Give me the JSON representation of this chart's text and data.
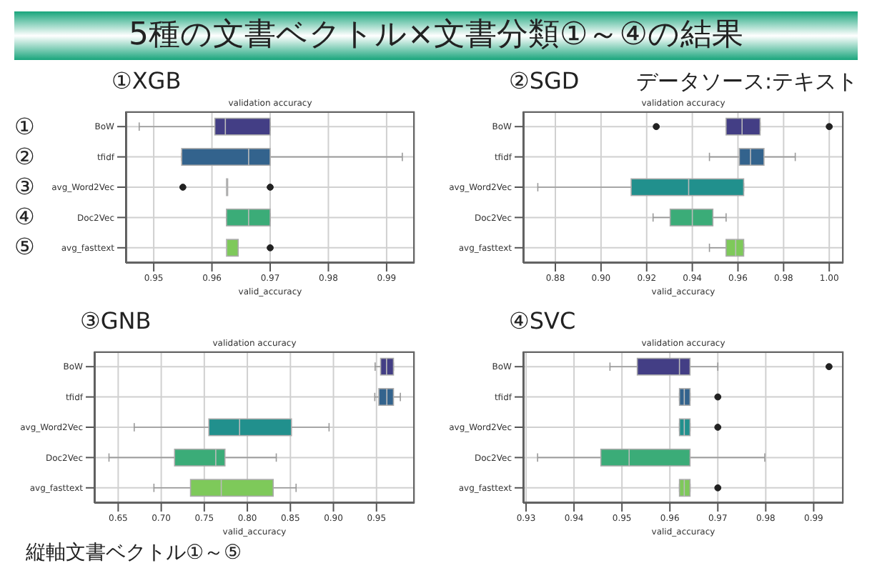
{
  "chart_data": [
    {
      "type": "box",
      "title": "①XGB",
      "subtitle": "validation accuracy",
      "xlabel": "valid_accuracy",
      "orientation": "horizontal",
      "grid": true,
      "categories": [
        "BoW",
        "tfidf",
        "avg_Word2Vec",
        "Doc2Vec",
        "avg_fasttext"
      ],
      "colors": [
        "#433e85",
        "#33638d",
        "#21908d",
        "#3bac78",
        "#7ec95a"
      ],
      "xlim": [
        0.9452,
        0.9948
      ],
      "xticks": [
        0.95,
        0.96,
        0.97,
        0.98,
        0.99
      ],
      "boxes": [
        {
          "low": 0.9475,
          "q1": 0.9605,
          "median": 0.9623,
          "q3": 0.97,
          "high": 0.97
        },
        {
          "low": 0.9548,
          "q1": 0.9548,
          "median": 0.9663,
          "q3": 0.97,
          "high": 0.9927
        },
        {
          "low": 0.9625,
          "q1": 0.9625,
          "median": 0.9625,
          "q3": 0.9625,
          "high": 0.9625,
          "outliers": [
            0.955,
            0.97
          ]
        },
        {
          "low": 0.9625,
          "q1": 0.9625,
          "median": 0.9663,
          "q3": 0.97,
          "high": 0.97
        },
        {
          "low": 0.9625,
          "q1": 0.9625,
          "median": 0.9625,
          "q3": 0.9645,
          "high": 0.9645,
          "outliers": [
            0.97
          ]
        }
      ],
      "annotations": [
        "5種の文書ベクトル×文書分類①～④の結果",
        "①",
        "②",
        "③",
        "④",
        "⑤"
      ]
    },
    {
      "type": "box",
      "title": "②SGD",
      "subtitle": "validation accuracy",
      "xlabel": "valid_accuracy",
      "orientation": "horizontal",
      "grid": true,
      "categories": [
        "BoW",
        "tfidf",
        "avg_Word2Vec",
        "Doc2Vec",
        "avg_fasttext"
      ],
      "colors": [
        "#433e85",
        "#33638d",
        "#21908d",
        "#3bac78",
        "#7ec95a"
      ],
      "xlim": [
        0.8659,
        1.0062
      ],
      "xticks": [
        0.88,
        {
          "value": 0.9,
          "label": "0.90"
        },
        0.92,
        0.94,
        0.96,
        0.98,
        {
          "value": 1,
          "label": "1.00"
        }
      ],
      "boxes": [
        {
          "low": 0.9548,
          "q1": 0.9548,
          "median": 0.9618,
          "q3": 0.9697,
          "high": 0.9697,
          "outliers": [
            0.9242,
            1.0
          ]
        },
        {
          "low": 0.9475,
          "q1": 0.9606,
          "median": 0.9655,
          "q3": 0.9714,
          "high": 0.9851
        },
        {
          "low": 0.8723,
          "q1": 0.9132,
          "median": 0.9384,
          "q3": 0.9625,
          "high": 0.9625
        },
        {
          "low": 0.9228,
          "q1": 0.9303,
          "median": 0.94,
          "q3": 0.949,
          "high": 0.9548
        },
        {
          "low": 0.9475,
          "q1": 0.9548,
          "median": 0.959,
          "q3": 0.9625,
          "high": 0.9625
        }
      ],
      "annotations": [
        "データソース:テキスト"
      ]
    },
    {
      "type": "box",
      "title": "③GNB",
      "subtitle": "validation accuracy",
      "xlabel": "valid_accuracy",
      "orientation": "horizontal",
      "grid": true,
      "categories": [
        "BoW",
        "tfidf",
        "avg_Word2Vec",
        "Doc2Vec",
        "avg_fasttext"
      ],
      "colors": [
        "#433e85",
        "#33638d",
        "#21908d",
        "#3bac78",
        "#7ec95a"
      ],
      "xlim": [
        0.6223,
        0.9942
      ],
      "xticks": [
        0.65,
        {
          "value": 0.7,
          "label": "0.70"
        },
        0.75,
        {
          "value": 0.8,
          "label": "0.80"
        },
        0.85,
        {
          "value": 0.9,
          "label": "0.90"
        },
        0.95
      ],
      "boxes": [
        {
          "low": 0.9484,
          "q1": 0.9548,
          "median": 0.9617,
          "q3": 0.9697,
          "high": 0.9697
        },
        {
          "low": 0.948,
          "q1": 0.9527,
          "median": 0.962,
          "q3": 0.9697,
          "high": 0.9777
        },
        {
          "low": 0.6686,
          "q1": 0.7553,
          "median": 0.791,
          "q3": 0.8512,
          "high": 0.8949
        },
        {
          "low": 0.6393,
          "q1": 0.7155,
          "median": 0.7633,
          "q3": 0.774,
          "high": 0.8336
        },
        {
          "low": 0.6915,
          "q1": 0.734,
          "median": 0.7697,
          "q3": 0.83,
          "high": 0.8566
        }
      ],
      "annotations": [
        "縦軸文書ベクトル①～⑤"
      ]
    },
    {
      "type": "box",
      "title": "④SVC",
      "subtitle": "validation accuracy",
      "xlabel": "valid_accuracy",
      "orientation": "horizontal",
      "grid": true,
      "categories": [
        "BoW",
        "tfidf",
        "avg_Word2Vec",
        "Doc2Vec",
        "avg_fasttext"
      ],
      "colors": [
        "#433e85",
        "#33638d",
        "#21908d",
        "#3bac78",
        "#7ec95a"
      ],
      "xlim": [
        0.9294,
        0.9962
      ],
      "xticks": [
        0.93,
        0.94,
        0.95,
        0.96,
        0.97,
        0.98,
        0.99
      ],
      "boxes": [
        {
          "low": 0.9475,
          "q1": 0.9532,
          "median": 0.962,
          "q3": 0.9642,
          "high": 0.97,
          "outliers": [
            0.9932
          ]
        },
        {
          "low": 0.962,
          "q1": 0.962,
          "median": 0.963,
          "q3": 0.9642,
          "high": 0.9642,
          "outliers": [
            0.97
          ]
        },
        {
          "low": 0.962,
          "q1": 0.962,
          "median": 0.963,
          "q3": 0.9642,
          "high": 0.9642,
          "outliers": [
            0.97
          ]
        },
        {
          "low": 0.9324,
          "q1": 0.9456,
          "median": 0.9515,
          "q3": 0.9642,
          "high": 0.9798
        },
        {
          "low": 0.962,
          "q1": 0.962,
          "median": 0.963,
          "q3": 0.9642,
          "high": 0.9642,
          "outliers": [
            0.97
          ]
        }
      ]
    }
  ]
}
